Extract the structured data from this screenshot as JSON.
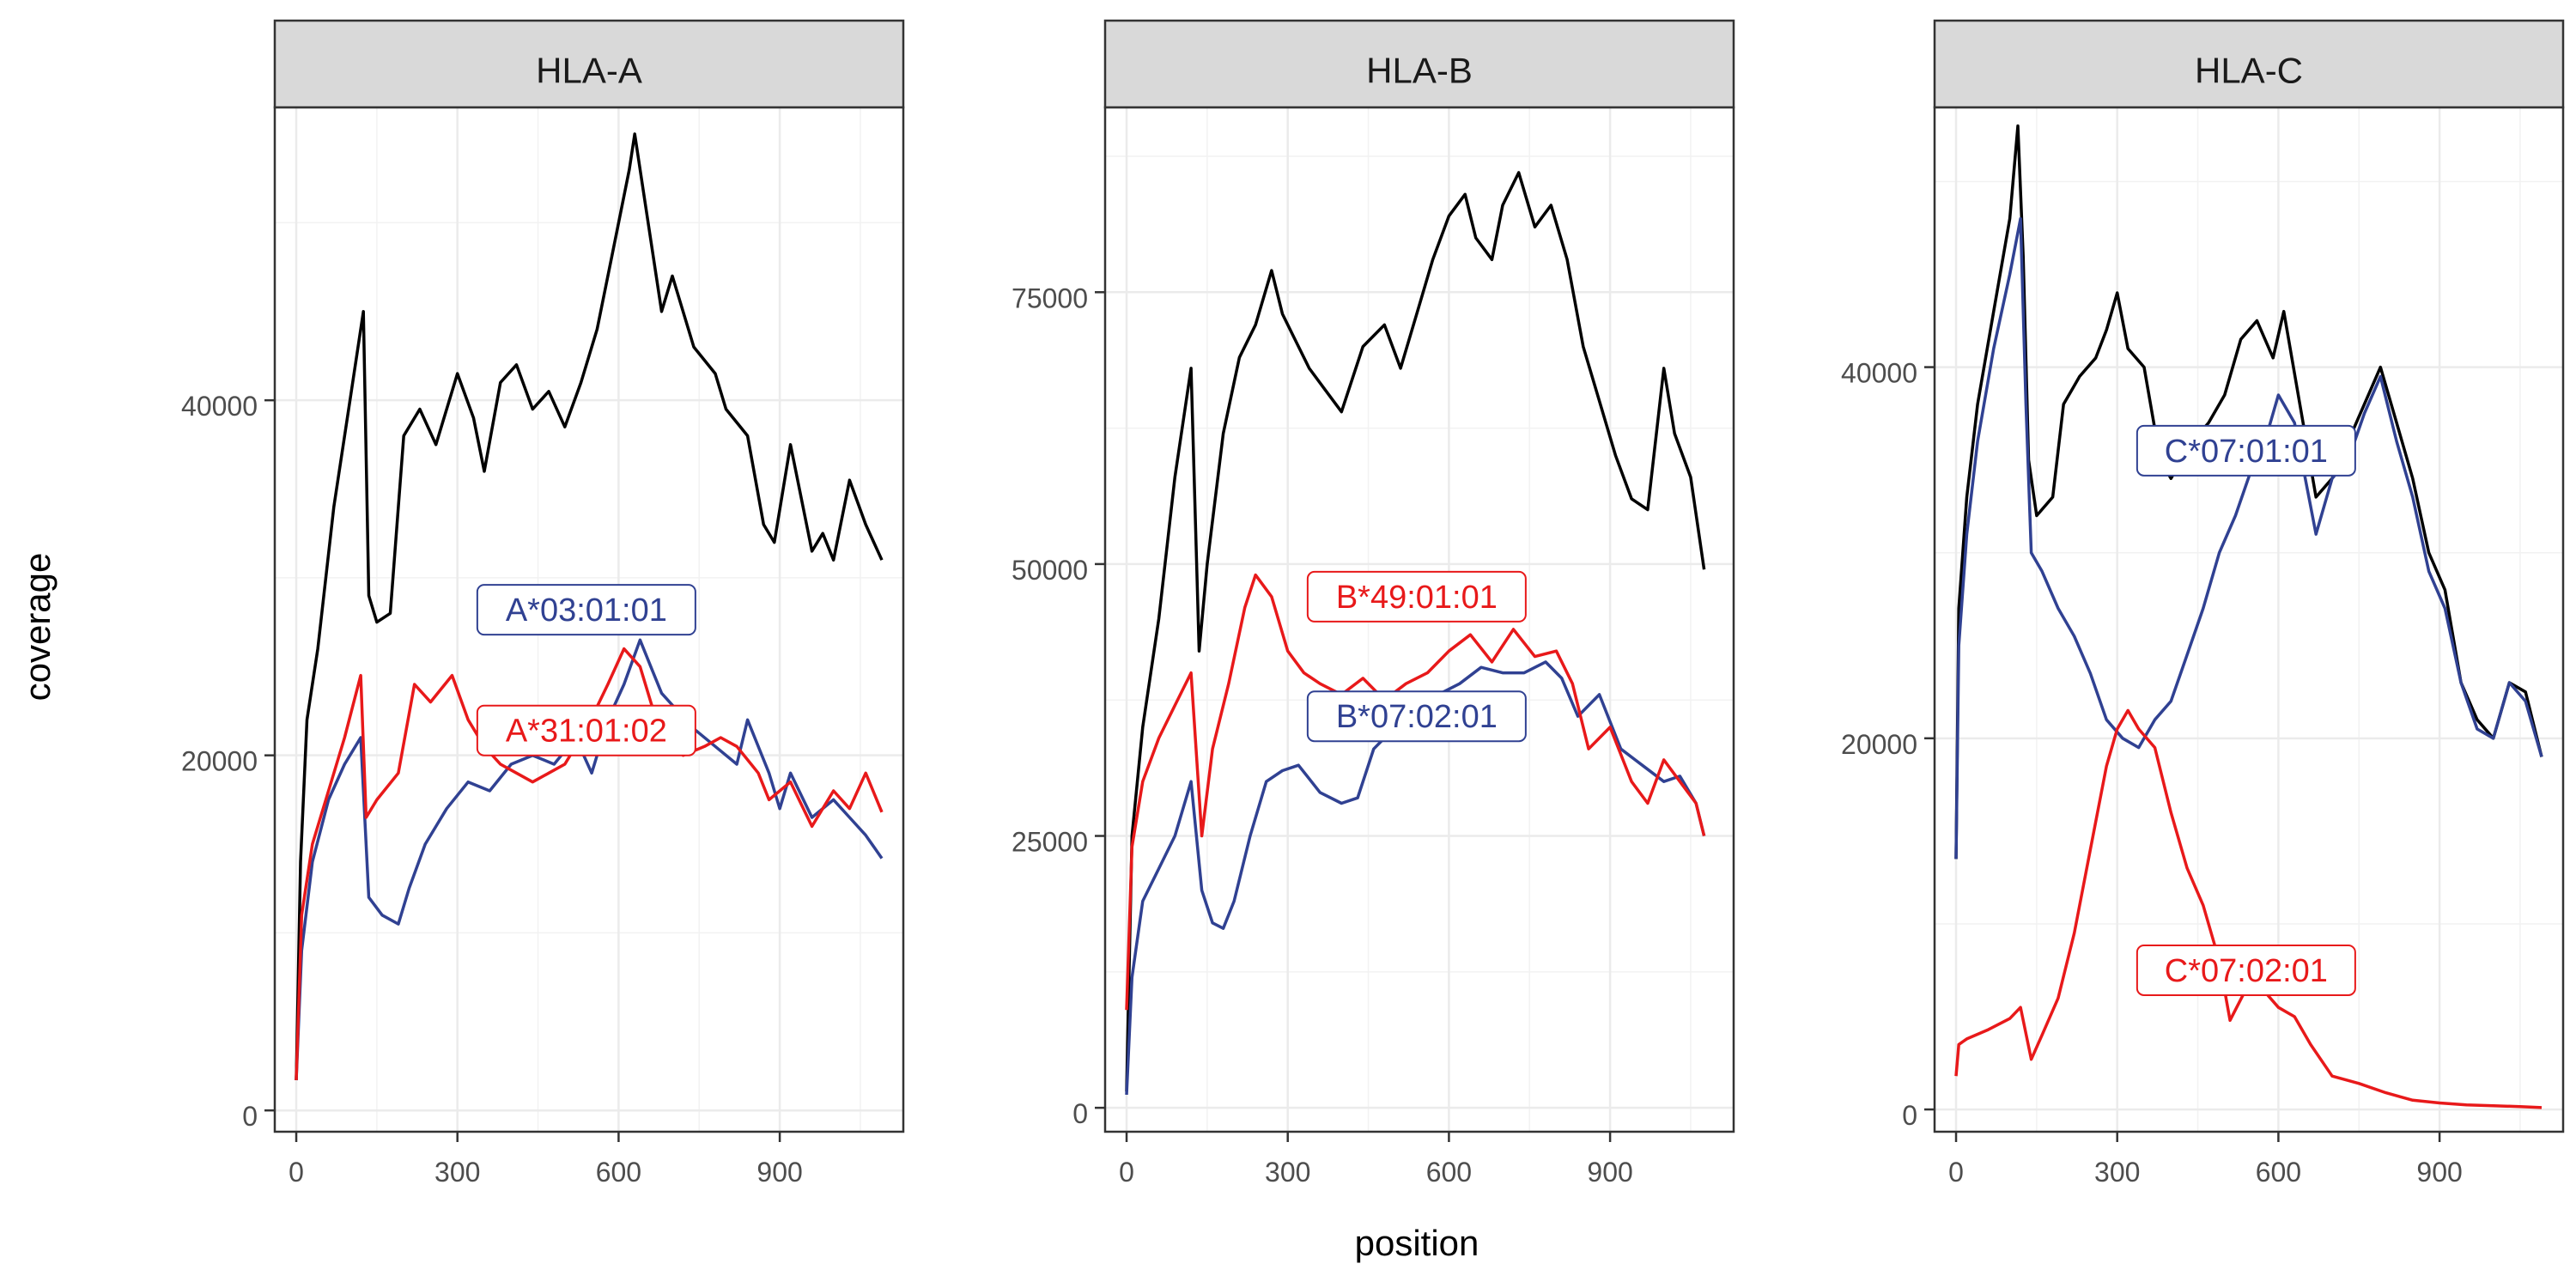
{
  "chart_data": [
    {
      "type": "line",
      "title": "HLA-A",
      "xlabel": "position",
      "ylabel": "coverage",
      "xlim": [
        -40,
        1130
      ],
      "ylim": [
        -1200,
        56500
      ],
      "xticks": [
        0,
        300,
        600,
        900
      ],
      "yticks": [
        0,
        20000,
        40000
      ],
      "grid": true,
      "legend": "none",
      "series": [
        {
          "color": "#000000",
          "x": [
            0,
            8,
            20,
            40,
            70,
            100,
            125,
            135,
            150,
            175,
            200,
            230,
            260,
            300,
            330,
            350,
            380,
            410,
            440,
            470,
            500,
            530,
            560,
            590,
            620,
            630,
            650,
            680,
            700,
            740,
            780,
            800,
            840,
            870,
            890,
            920,
            960,
            980,
            1000,
            1030,
            1060,
            1090
          ],
          "values": [
            1700,
            14000,
            22000,
            26000,
            34000,
            40000,
            45000,
            29000,
            27500,
            28000,
            38000,
            39500,
            37500,
            41500,
            39000,
            36000,
            41000,
            42000,
            39500,
            40500,
            38500,
            41000,
            44000,
            48500,
            53000,
            55000,
            51000,
            45000,
            47000,
            43000,
            41500,
            39500,
            38000,
            33000,
            32000,
            37500,
            31500,
            32500,
            31000,
            35500,
            33000,
            31000
          ]
        },
        {
          "color": "#304192",
          "x": [
            0,
            10,
            30,
            60,
            90,
            120,
            135,
            160,
            190,
            210,
            240,
            280,
            320,
            360,
            400,
            440,
            480,
            520,
            550,
            580,
            610,
            640,
            660,
            680,
            710,
            740,
            780,
            820,
            840,
            880,
            900,
            920,
            960,
            1000,
            1030,
            1060,
            1090
          ],
          "values": [
            1700,
            9000,
            14000,
            17500,
            19500,
            21000,
            12000,
            11000,
            10500,
            12500,
            15000,
            17000,
            18500,
            18000,
            19500,
            20000,
            19500,
            21000,
            19000,
            22000,
            24000,
            26500,
            25000,
            23500,
            22500,
            21500,
            20500,
            19500,
            22000,
            19000,
            17000,
            19000,
            16500,
            17500,
            16500,
            15500,
            14200
          ]
        },
        {
          "color": "#e8191a",
          "x": [
            0,
            10,
            30,
            60,
            90,
            120,
            130,
            150,
            190,
            220,
            250,
            290,
            320,
            350,
            380,
            410,
            440,
            470,
            500,
            540,
            580,
            610,
            640,
            660,
            680,
            720,
            760,
            790,
            820,
            860,
            880,
            920,
            960,
            1000,
            1030,
            1060,
            1090
          ],
          "values": [
            1700,
            11000,
            15000,
            18000,
            21000,
            24500,
            16500,
            17500,
            19000,
            24000,
            23000,
            24500,
            22000,
            20500,
            19500,
            19000,
            18500,
            19000,
            19500,
            21500,
            24000,
            26000,
            25000,
            23000,
            21000,
            20000,
            20500,
            21000,
            20500,
            19000,
            17500,
            18500,
            16000,
            18000,
            17000,
            19000,
            16800
          ]
        }
      ],
      "labels": [
        {
          "text": "A*03:01:01",
          "x": 540,
          "y": 28200,
          "color": "#304192"
        },
        {
          "text": "A*31:01:02",
          "x": 540,
          "y": 21400,
          "color": "#e8191a"
        }
      ]
    },
    {
      "type": "line",
      "title": "HLA-B",
      "xlabel": "position",
      "ylabel": "coverage",
      "xlim": [
        -40,
        1130
      ],
      "ylim": [
        -2200,
        92000
      ],
      "xticks": [
        0,
        300,
        600,
        900
      ],
      "yticks": [
        0,
        25000,
        50000,
        75000
      ],
      "grid": true,
      "legend": "none",
      "series": [
        {
          "color": "#000000",
          "x": [
            0,
            10,
            30,
            60,
            90,
            120,
            135,
            150,
            180,
            210,
            240,
            270,
            290,
            310,
            340,
            370,
            400,
            440,
            480,
            510,
            540,
            570,
            600,
            630,
            650,
            680,
            700,
            730,
            760,
            790,
            820,
            850,
            880,
            910,
            940,
            970,
            1000,
            1020,
            1050,
            1075
          ],
          "values": [
            1500,
            25000,
            35000,
            45000,
            58000,
            68000,
            42000,
            50000,
            62000,
            69000,
            72000,
            77000,
            73000,
            71000,
            68000,
            66000,
            64000,
            70000,
            72000,
            68000,
            73000,
            78000,
            82000,
            84000,
            80000,
            78000,
            83000,
            86000,
            81000,
            83000,
            78000,
            70000,
            65000,
            60000,
            56000,
            55000,
            68000,
            62000,
            58000,
            49500
          ]
        },
        {
          "color": "#304192",
          "x": [
            0,
            10,
            30,
            60,
            90,
            120,
            140,
            160,
            180,
            200,
            230,
            260,
            290,
            320,
            360,
            400,
            430,
            460,
            500,
            540,
            580,
            620,
            660,
            700,
            740,
            780,
            810,
            840,
            880,
            920,
            960,
            1000,
            1030,
            1060,
            1075
          ],
          "values": [
            1200,
            12000,
            19000,
            22000,
            25000,
            30000,
            20000,
            17000,
            16500,
            19000,
            25000,
            30000,
            31000,
            31500,
            29000,
            28000,
            28500,
            33000,
            35000,
            36500,
            38000,
            39000,
            40500,
            40000,
            40000,
            41000,
            39500,
            36000,
            38000,
            33000,
            31500,
            30000,
            30500,
            28000,
            25000
          ]
        },
        {
          "color": "#e8191a",
          "x": [
            0,
            10,
            30,
            60,
            90,
            120,
            140,
            160,
            190,
            220,
            240,
            270,
            300,
            330,
            360,
            400,
            440,
            480,
            520,
            560,
            600,
            640,
            680,
            720,
            760,
            800,
            830,
            860,
            900,
            940,
            970,
            1000,
            1030,
            1060,
            1075
          ],
          "values": [
            9000,
            24000,
            30000,
            34000,
            37000,
            40000,
            25000,
            33000,
            39000,
            46000,
            49000,
            47000,
            42000,
            40000,
            39000,
            38000,
            39500,
            37500,
            39000,
            40000,
            42000,
            43500,
            41000,
            44000,
            41500,
            42000,
            39000,
            33000,
            35000,
            30000,
            28000,
            32000,
            30000,
            28000,
            25000
          ]
        }
      ],
      "labels": [
        {
          "text": "B*49:01:01",
          "x": 540,
          "y": 47000,
          "color": "#e8191a"
        },
        {
          "text": "B*07:02:01",
          "x": 540,
          "y": 36000,
          "color": "#304192"
        }
      ]
    },
    {
      "type": "line",
      "title": "HLA-C",
      "xlabel": "position",
      "ylabel": "coverage",
      "xlim": [
        -40,
        1130
      ],
      "ylim": [
        -1200,
        54000
      ],
      "xticks": [
        0,
        300,
        600,
        900
      ],
      "yticks": [
        0,
        20000,
        40000
      ],
      "grid": true,
      "legend": "none",
      "series": [
        {
          "color": "#000000",
          "x": [
            0,
            5,
            20,
            40,
            70,
            100,
            115,
            125,
            135,
            150,
            180,
            200,
            230,
            260,
            280,
            300,
            320,
            350,
            380,
            400,
            440,
            470,
            500,
            530,
            560,
            590,
            610,
            640,
            670,
            700,
            730,
            760,
            790,
            820,
            850,
            880,
            910,
            940,
            970,
            1000,
            1030,
            1060,
            1090
          ],
          "values": [
            13500,
            27000,
            33000,
            38000,
            43000,
            48000,
            53000,
            46000,
            35000,
            32000,
            33000,
            38000,
            39500,
            40500,
            42000,
            44000,
            41000,
            40000,
            35000,
            34000,
            36000,
            37000,
            38500,
            41500,
            42500,
            40500,
            43000,
            38000,
            33000,
            34000,
            36000,
            38000,
            40000,
            37000,
            34000,
            30000,
            28000,
            23000,
            21000,
            20000,
            23000,
            22500,
            19000
          ]
        },
        {
          "color": "#304192",
          "x": [
            0,
            5,
            20,
            40,
            70,
            100,
            120,
            130,
            140,
            160,
            190,
            220,
            250,
            280,
            310,
            340,
            370,
            400,
            430,
            460,
            490,
            520,
            550,
            580,
            600,
            630,
            670,
            700,
            730,
            760,
            790,
            820,
            850,
            880,
            910,
            940,
            970,
            1000,
            1030,
            1060,
            1090
          ],
          "values": [
            13500,
            25000,
            31000,
            36000,
            41000,
            45000,
            48000,
            38000,
            30000,
            29000,
            27000,
            25500,
            23500,
            21000,
            20000,
            19500,
            21000,
            22000,
            24500,
            27000,
            30000,
            32000,
            34500,
            36500,
            38500,
            37000,
            31000,
            34000,
            35000,
            37500,
            39500,
            36000,
            33000,
            29000,
            27000,
            23000,
            20500,
            20000,
            23000,
            22000,
            19000
          ]
        },
        {
          "color": "#e8191a",
          "x": [
            0,
            5,
            20,
            60,
            100,
            120,
            140,
            160,
            190,
            220,
            250,
            280,
            300,
            320,
            340,
            370,
            400,
            430,
            460,
            490,
            510,
            540,
            570,
            600,
            630,
            660,
            700,
            750,
            800,
            850,
            900,
            950,
            1000,
            1050,
            1090
          ],
          "values": [
            1800,
            3500,
            3800,
            4300,
            4900,
            5500,
            2700,
            4000,
            6000,
            9500,
            14000,
            18500,
            20500,
            21500,
            20500,
            19500,
            16000,
            13000,
            11000,
            8000,
            4800,
            6500,
            6500,
            5500,
            5000,
            3500,
            1800,
            1400,
            900,
            500,
            350,
            250,
            200,
            150,
            100
          ]
        }
      ],
      "labels": [
        {
          "text": "C*07:01:01",
          "x": 540,
          "y": 35500,
          "color": "#304192"
        },
        {
          "text": "C*07:02:01",
          "x": 540,
          "y": 7500,
          "color": "#e8191a"
        }
      ]
    }
  ]
}
